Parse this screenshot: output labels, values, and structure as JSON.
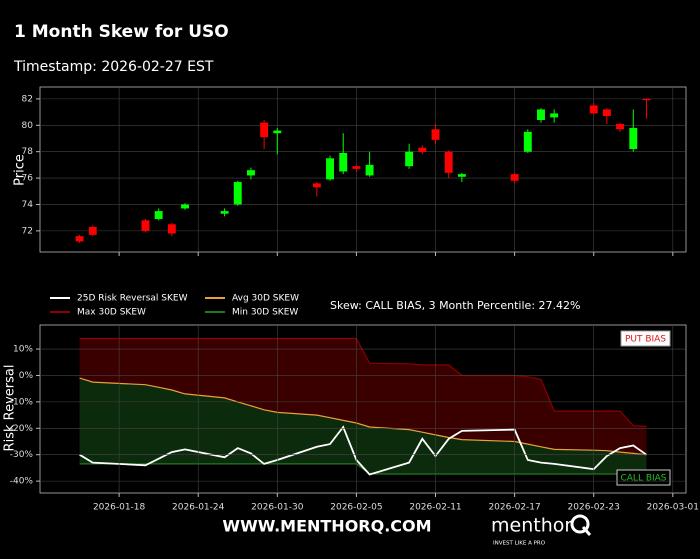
{
  "header": {
    "title": "1 Month Skew for USO",
    "timestamp": "Timestamp: 2026-02-27 EST"
  },
  "footer": {
    "website": "WWW.MENTHORQ.COM",
    "brand": "menthor",
    "tagline": "INVEST LIKE A PRO"
  },
  "chart_data": [
    {
      "type": "candlestick",
      "ylabel": "Price",
      "x": [
        "2026-01-15",
        "2026-01-16",
        "2026-01-20",
        "2026-01-21",
        "2026-01-22",
        "2026-01-23",
        "2026-01-26",
        "2026-01-27",
        "2026-01-28",
        "2026-01-29",
        "2026-01-30",
        "2026-02-02",
        "2026-02-03",
        "2026-02-04",
        "2026-02-05",
        "2026-02-06",
        "2026-02-09",
        "2026-02-10",
        "2026-02-11",
        "2026-02-12",
        "2026-02-13",
        "2026-02-17",
        "2026-02-18",
        "2026-02-19",
        "2026-02-20",
        "2026-02-23",
        "2026-02-24",
        "2026-02-25",
        "2026-02-26",
        "2026-02-27"
      ],
      "open": [
        71.6,
        72.3,
        72.8,
        72.9,
        72.5,
        73.7,
        73.3,
        74.0,
        76.2,
        80.2,
        79.4,
        75.6,
        75.9,
        76.5,
        76.9,
        76.2,
        76.9,
        78.3,
        79.7,
        78.0,
        76.1,
        76.3,
        78.0,
        80.4,
        80.6,
        81.5,
        81.2,
        80.1,
        78.2,
        82.0
      ],
      "high": [
        71.7,
        72.4,
        72.9,
        73.7,
        72.6,
        74.1,
        73.7,
        75.8,
        76.8,
        80.4,
        79.8,
        75.7,
        77.7,
        79.4,
        77.0,
        78.0,
        78.6,
        78.5,
        80.1,
        78.1,
        76.4,
        76.4,
        79.7,
        81.3,
        81.2,
        81.7,
        81.3,
        80.2,
        81.2,
        82.0
      ],
      "low": [
        71.1,
        71.6,
        71.9,
        72.8,
        71.6,
        73.6,
        73.1,
        73.9,
        75.9,
        78.2,
        77.8,
        74.6,
        75.8,
        76.3,
        76.5,
        76.1,
        76.7,
        77.8,
        78.6,
        76.0,
        75.7,
        75.6,
        77.9,
        80.2,
        80.2,
        80.8,
        80.1,
        79.5,
        78.0,
        80.5
      ],
      "close": [
        71.2,
        71.7,
        72.0,
        73.5,
        71.8,
        74.0,
        73.5,
        75.7,
        76.6,
        79.1,
        79.6,
        75.3,
        77.5,
        77.9,
        76.7,
        77.0,
        78.0,
        78.0,
        78.9,
        76.4,
        76.3,
        75.8,
        79.5,
        81.2,
        80.9,
        80.9,
        80.7,
        79.7,
        79.8,
        81.9
      ],
      "up_color": "#00ff00",
      "down_color": "#ff0000",
      "xlim": [
        "2026-01-12",
        "2026-03-02"
      ],
      "ylim": [
        70.4,
        82.9
      ],
      "yticks": [
        72,
        74,
        76,
        78,
        80,
        82
      ],
      "grid": true
    },
    {
      "type": "line",
      "ylabel": "Risk Reversal",
      "annotation": "Skew: CALL BIAS, 3 Month Percentile: 27.42%",
      "put_label": "PUT BIAS",
      "call_label": "CALL BIAS",
      "x": [
        "2026-01-15",
        "2026-01-16",
        "2026-01-20",
        "2026-01-21",
        "2026-01-22",
        "2026-01-23",
        "2026-01-26",
        "2026-01-27",
        "2026-01-28",
        "2026-01-29",
        "2026-01-30",
        "2026-02-02",
        "2026-02-03",
        "2026-02-04",
        "2026-02-05",
        "2026-02-06",
        "2026-02-09",
        "2026-02-10",
        "2026-02-11",
        "2026-02-12",
        "2026-02-13",
        "2026-02-17",
        "2026-02-18",
        "2026-02-19",
        "2026-02-20",
        "2026-02-23",
        "2026-02-24",
        "2026-02-25",
        "2026-02-26",
        "2026-02-27"
      ],
      "series": [
        {
          "name": "25D Risk Reversal SKEW",
          "color": "#ffffff",
          "values": [
            -30,
            -33,
            -34,
            -31.5,
            -29,
            -28,
            -31,
            -27.5,
            -29.5,
            -33.5,
            -32,
            -27,
            -26,
            -19.5,
            -32,
            -37.5,
            -33,
            -24,
            -30.5,
            -24,
            -21,
            -20.5,
            -32,
            -33,
            -33.5,
            -35.5,
            -30.5,
            -27.5,
            -26.5,
            -30
          ]
        },
        {
          "name": "Avg 30D SKEW",
          "color": "#e8a13a",
          "values": [
            -1,
            -2.5,
            -3.5,
            -4.5,
            -5.5,
            -7,
            -8.5,
            -10,
            -11.5,
            -13,
            -14,
            -15,
            -16,
            -17,
            -18,
            -19.5,
            -20.5,
            -21.5,
            -22.5,
            -23.5,
            -24.3,
            -25,
            -26,
            -27,
            -28,
            -28.3,
            -28.5,
            -29,
            -29.5,
            -30
          ]
        },
        {
          "name": "Max 30D SKEW",
          "color": "#8b0000",
          "fill_color": "#3a0000",
          "values": [
            14,
            14,
            14,
            14,
            14,
            14,
            14,
            14,
            14,
            14,
            14,
            14,
            14,
            14,
            14,
            4.6,
            4.4,
            4,
            4,
            4,
            0,
            0,
            -0.5,
            -1.5,
            -13.5,
            -13.5,
            -13.5,
            -13.5,
            -19,
            -19.3
          ]
        },
        {
          "name": "Min 30D SKEW",
          "color": "#1f7a1f",
          "fill_color": "#0c2a0c",
          "values": [
            -33.5,
            -33.5,
            -33.5,
            -33.5,
            -33.5,
            -33.5,
            -33.5,
            -33.5,
            -33.5,
            -33.5,
            -33.5,
            -33.5,
            -33.5,
            -33.5,
            -33.5,
            -37.3,
            -37.3,
            -37.3,
            -37.3,
            -37.3,
            -37.3,
            -37.3,
            -37.3,
            -37.3,
            -37.3,
            -37.3,
            -37.3,
            -37.3,
            -37.3,
            -37.3
          ]
        }
      ],
      "xlim": [
        "2026-01-12",
        "2026-03-02"
      ],
      "xticks": [
        "2026-01-18",
        "2026-01-24",
        "2026-01-30",
        "2026-02-05",
        "2026-02-11",
        "2026-02-17",
        "2026-02-23",
        "2026-03-01"
      ],
      "ylim": [
        -44.5,
        19.1
      ],
      "yticks": [
        {
          "value": 10,
          "label": "10%"
        },
        {
          "value": 0,
          "label": "0%"
        },
        {
          "value": -10,
          "label": "-10%"
        },
        {
          "value": -20,
          "label": "-20%"
        },
        {
          "value": -30,
          "label": "-30%"
        },
        {
          "value": -40,
          "label": "-40%"
        }
      ],
      "grid": true
    }
  ]
}
